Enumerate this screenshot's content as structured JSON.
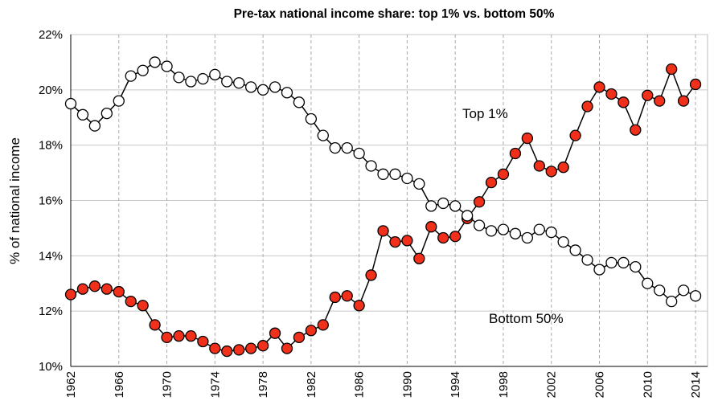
{
  "chart_data": {
    "type": "line",
    "title": "Pre-tax national income share: top 1% vs. bottom 50%",
    "y_label": "% of national income",
    "x": [
      1962,
      1963,
      1964,
      1965,
      1966,
      1967,
      1968,
      1969,
      1970,
      1971,
      1972,
      1973,
      1974,
      1975,
      1976,
      1977,
      1978,
      1979,
      1980,
      1981,
      1982,
      1983,
      1984,
      1985,
      1986,
      1987,
      1988,
      1989,
      1990,
      1991,
      1992,
      1993,
      1994,
      1995,
      1996,
      1997,
      1998,
      1999,
      2000,
      2001,
      2002,
      2003,
      2004,
      2005,
      2006,
      2007,
      2008,
      2009,
      2010,
      2011,
      2012,
      2013,
      2014
    ],
    "series": [
      {
        "name": "Top 1%",
        "color": "#f0301a",
        "values": [
          12.6,
          12.8,
          12.9,
          12.8,
          12.7,
          12.35,
          12.2,
          11.5,
          11.05,
          11.1,
          11.1,
          10.9,
          10.65,
          10.55,
          10.6,
          10.65,
          10.75,
          11.2,
          10.65,
          11.05,
          11.3,
          11.5,
          12.5,
          12.55,
          12.2,
          13.3,
          14.9,
          14.5,
          14.55,
          13.9,
          15.05,
          14.65,
          14.7,
          15.35,
          15.95,
          16.65,
          16.95,
          17.7,
          18.25,
          17.25,
          17.05,
          17.2,
          18.35,
          19.4,
          20.1,
          19.85,
          19.55,
          18.55,
          19.8,
          19.6,
          20.75,
          19.6,
          20.2
        ]
      },
      {
        "name": "Bottom 50%",
        "color": "#ffffff",
        "values": [
          19.5,
          19.1,
          18.7,
          19.15,
          19.6,
          20.5,
          20.7,
          21.0,
          20.85,
          20.45,
          20.3,
          20.4,
          20.55,
          20.3,
          20.25,
          20.1,
          20.0,
          20.1,
          19.9,
          19.55,
          18.95,
          18.35,
          17.9,
          17.9,
          17.7,
          17.25,
          16.95,
          16.95,
          16.8,
          16.6,
          15.8,
          15.9,
          15.8,
          15.45,
          15.1,
          14.9,
          14.95,
          14.8,
          14.65,
          14.95,
          14.85,
          14.5,
          14.2,
          13.85,
          13.5,
          13.75,
          13.75,
          13.6,
          13.0,
          12.75,
          12.35,
          12.75,
          12.55
        ]
      }
    ],
    "xlim": [
      1962,
      2015
    ],
    "xticks": [
      1962,
      1966,
      1970,
      1974,
      1978,
      1982,
      1986,
      1990,
      1994,
      1998,
      2002,
      2006,
      2010,
      2014
    ],
    "ylim": [
      10,
      22
    ],
    "yticks": [
      {
        "value": 10,
        "label": "10%"
      },
      {
        "value": 12,
        "label": "12%"
      },
      {
        "value": 14,
        "label": "14%"
      },
      {
        "value": 16,
        "label": "16%"
      },
      {
        "value": 18,
        "label": "18%"
      },
      {
        "value": 20,
        "label": "20%"
      },
      {
        "value": 22,
        "label": "22%"
      }
    ],
    "grid": true
  }
}
